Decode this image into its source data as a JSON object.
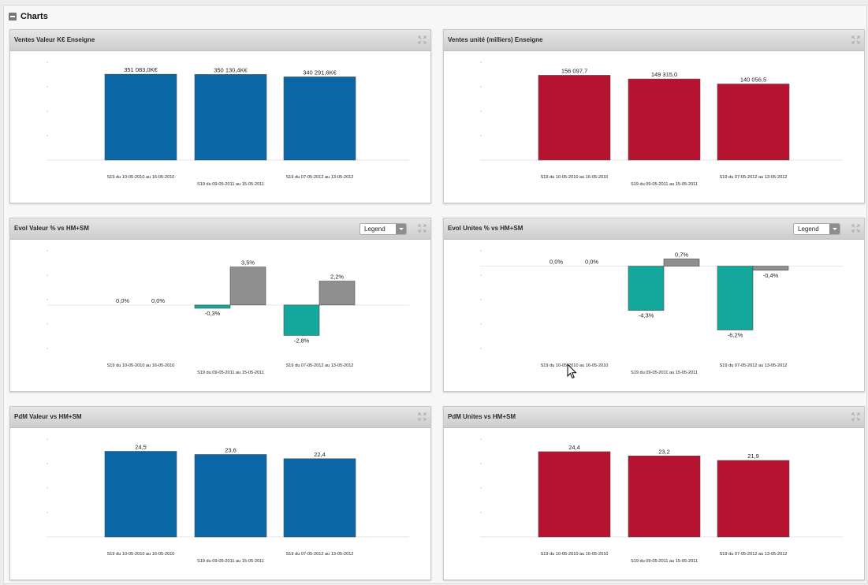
{
  "section": {
    "title": "Charts"
  },
  "legend_label": "Legend",
  "panels": [
    {
      "title": "Ventes Valeur K€ Enseigne",
      "has_legend": false,
      "chart_data": {
        "type": "bar",
        "categories": [
          "S19 du 10-05-2010 au 16-05-2010",
          "S19 du 09-05-2011 au 15-05-2011",
          "S19 du 07-05-2012 au 13-05-2012"
        ],
        "series": [
          {
            "values": [
              351083.0,
              350130.4,
              340291.6
            ],
            "labels": [
              "351 083,0K€",
              "350 130,4K€",
              "340 291,6K€"
            ],
            "color": "#0a66a5"
          }
        ],
        "ylim": [
          0,
          400000
        ]
      }
    },
    {
      "title": "Ventes unité (milliers) Enseigne",
      "has_legend": false,
      "chart_data": {
        "type": "bar",
        "categories": [
          "S19 du 10-05-2010 au 16-05-2010",
          "S19 du 09-05-2011 au 15-05-2011",
          "S19 du 07-05-2012 au 13-05-2012"
        ],
        "series": [
          {
            "values": [
              156097.7,
              149315.0,
              140056.5
            ],
            "labels": [
              "156 097,7",
              "149 315,0",
              "140 056,5"
            ],
            "color": "#b51330"
          }
        ],
        "ylim": [
          0,
          180000
        ]
      }
    },
    {
      "title": "Evol Valeur % vs HM+SM",
      "has_legend": true,
      "chart_data": {
        "type": "bar",
        "categories": [
          "S19 du 10-05-2010 au 16-05-2010",
          "S19 du 09-05-2011 au 15-05-2011",
          "S19 du 07-05-2012 au 13-05-2012"
        ],
        "series": [
          {
            "values": [
              0.0,
              -0.3,
              -2.8
            ],
            "labels": [
              "0,0%",
              "-0,3%",
              "-2,8%"
            ],
            "color": "#13a89b"
          },
          {
            "values": [
              0.0,
              3.5,
              2.2
            ],
            "labels": [
              "0,0%",
              "3,5%",
              "2,2%"
            ],
            "color": "#8f8f8f"
          }
        ],
        "ylim": [
          -4,
          5
        ]
      }
    },
    {
      "title": "Evol Unites % vs HM+SM",
      "has_legend": true,
      "chart_data": {
        "type": "bar",
        "categories": [
          "S19 du 10-05-2010 au 16-05-2010",
          "S19 du 09-05-2011 au 15-05-2011",
          "S19 du 07-05-2012 au 13-05-2012"
        ],
        "series": [
          {
            "values": [
              0.0,
              -4.3,
              -6.2
            ],
            "labels": [
              "0,0%",
              "-4,3%",
              "-6,2%"
            ],
            "color": "#13a89b"
          },
          {
            "values": [
              0.0,
              0.7,
              -0.4
            ],
            "labels": [
              "0,0%",
              "0,7%",
              "-0,4%"
            ],
            "color": "#8f8f8f"
          }
        ],
        "ylim": [
          -8,
          1.5
        ]
      }
    },
    {
      "title": "PdM Valeur vs HM+SM",
      "has_legend": false,
      "chart_data": {
        "type": "bar",
        "categories": [
          "S19 du 10-05-2010 au 16-05-2010",
          "S19 du 09-05-2011 au 15-05-2011",
          "S19 du 07-05-2012 au 13-05-2012"
        ],
        "series": [
          {
            "values": [
              24.5,
              23.6,
              22.4
            ],
            "labels": [
              "24,5",
              "23,6",
              "22,4"
            ],
            "color": "#0a66a5"
          }
        ],
        "ylim": [
          0,
          28
        ]
      }
    },
    {
      "title": "PdM Unites vs HM+SM",
      "has_legend": false,
      "chart_data": {
        "type": "bar",
        "categories": [
          "S19 du 10-05-2010 au 16-05-2010",
          "S19 du 09-05-2011 au 15-05-2011",
          "S19 du 07-05-2012 au 13-05-2012"
        ],
        "series": [
          {
            "values": [
              24.4,
              23.2,
              21.9
            ],
            "labels": [
              "24,4",
              "23,2",
              "21,9"
            ],
            "color": "#b51330"
          }
        ],
        "ylim": [
          0,
          28
        ]
      }
    }
  ]
}
